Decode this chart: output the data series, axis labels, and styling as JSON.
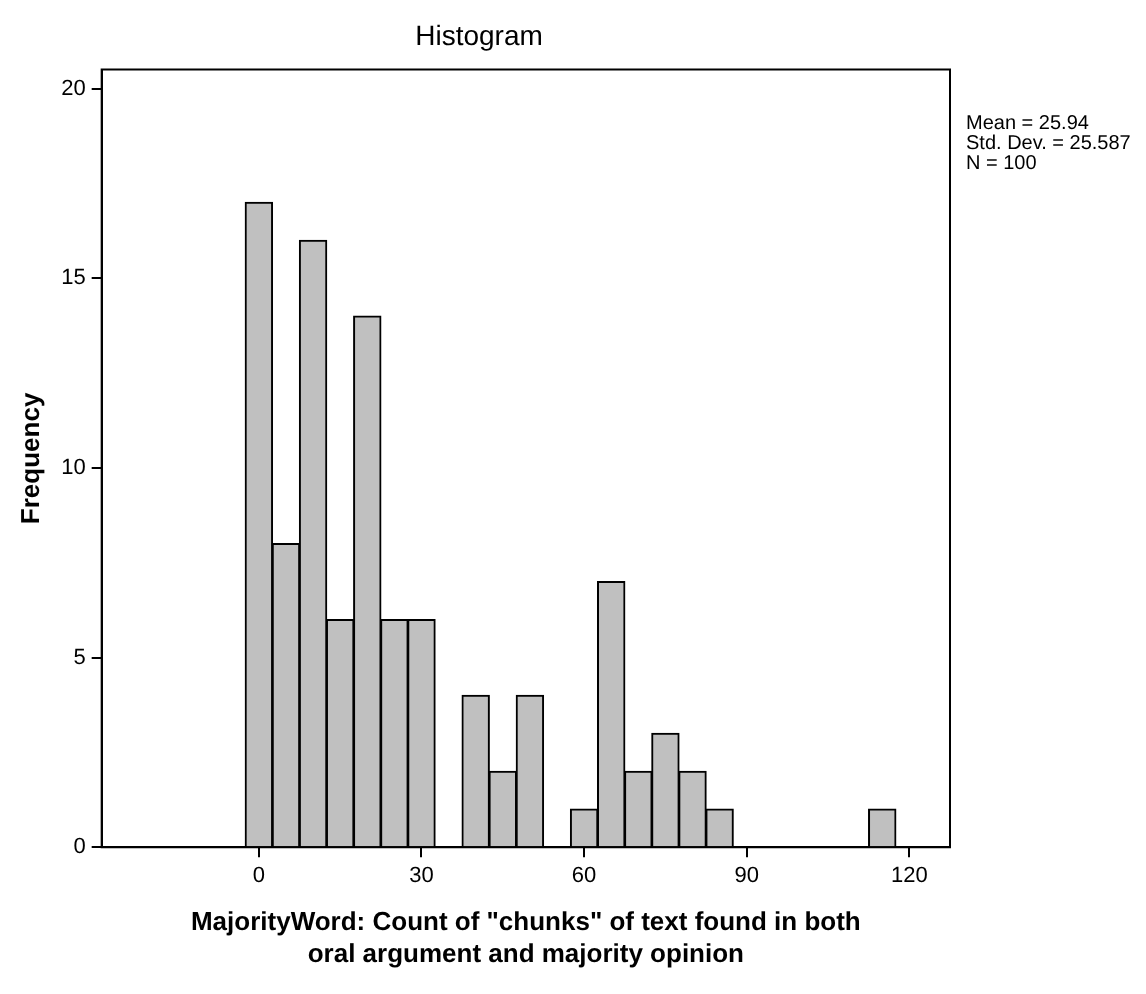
{
  "chart_data": {
    "type": "histogram",
    "title": "Histogram",
    "xlabel": "MajorityWord: Count of \"chunks\" of text found in both oral argument and majority opinion",
    "ylabel": "Frequency",
    "annotations": [
      "Mean = 25.94",
      "Std. Dev. = 25.587",
      "N = 100"
    ],
    "bins": [
      -2.5,
      2.5,
      7.5,
      12.5,
      17.5,
      22.5,
      27.5,
      32.5,
      37.5,
      42.5,
      47.5,
      52.5,
      57.5,
      62.5,
      67.5,
      72.5,
      77.5,
      82.5,
      87.5,
      92.5,
      97.5,
      102.5,
      107.5,
      112.5,
      117.5
    ],
    "values": [
      17,
      8,
      16,
      6,
      14,
      6,
      6,
      0,
      4,
      2,
      4,
      0,
      1,
      7,
      2,
      3,
      2,
      1,
      0,
      0,
      0,
      0,
      0,
      1
    ],
    "color": "#c0c0c0",
    "xlim": [
      -29,
      127.5
    ],
    "xticks": [
      0,
      30,
      60,
      90,
      120
    ],
    "ylim": [
      0,
      20.5
    ],
    "yticks": [
      0,
      5,
      10,
      15,
      20
    ],
    "grid": false,
    "legend": false
  }
}
